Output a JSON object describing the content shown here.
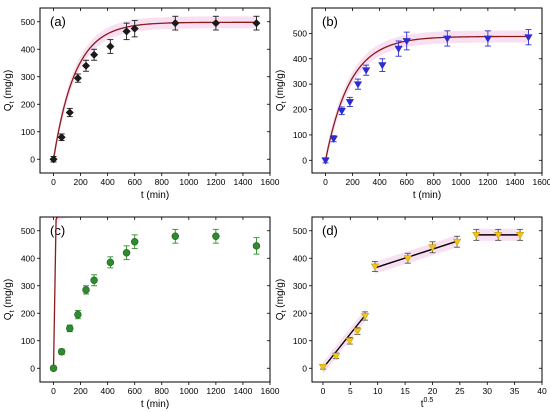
{
  "chart_data": [
    {
      "type": "scatter",
      "panel_label": "(a)",
      "xlabel": "t (min)",
      "ylabel": "Q",
      "ylabel_sub": "t",
      "ylabel_unit": " (mg/g)",
      "xlim": [
        -100,
        1600
      ],
      "ylim": [
        -50,
        550
      ],
      "xticks": [
        0,
        200,
        400,
        600,
        800,
        1000,
        1200,
        1400,
        1600
      ],
      "yticks": [
        0,
        100,
        200,
        300,
        400,
        500
      ],
      "marker": "diamond",
      "marker_color": "#1a1a1a",
      "error_color": "#1a1a1a",
      "fit_color": "#8b1a1a",
      "band_color": "#f3c7e8",
      "fit": {
        "qe": 498,
        "k": 0.0062
      },
      "series": [
        {
          "x": [
            0,
            60,
            120,
            180,
            240,
            300,
            420,
            540,
            600,
            900,
            1200,
            1500
          ],
          "y": [
            0,
            80,
            170,
            295,
            340,
            380,
            410,
            465,
            475,
            495,
            495,
            495
          ],
          "err": [
            10,
            12,
            15,
            15,
            20,
            20,
            25,
            30,
            30,
            25,
            25,
            25
          ]
        }
      ]
    },
    {
      "type": "scatter",
      "panel_label": "(b)",
      "xlabel": "t (min)",
      "ylabel": "Q",
      "ylabel_sub": "t",
      "ylabel_unit": " (mg/g)",
      "xlim": [
        -100,
        1600
      ],
      "ylim": [
        -50,
        600
      ],
      "xticks": [
        0,
        200,
        400,
        600,
        800,
        1000,
        1200,
        1400,
        1600
      ],
      "yticks": [
        0,
        100,
        200,
        300,
        400,
        500
      ],
      "marker": "triangle-down",
      "marker_color": "#2d2dcf",
      "error_color": "#2d2dcf",
      "fit_color": "#8b1a1a",
      "band_color": "#f3c7e8",
      "fit": {
        "qe": 488,
        "k": 0.0055
      },
      "series": [
        {
          "x": [
            0,
            60,
            120,
            180,
            240,
            300,
            420,
            540,
            600,
            900,
            1200,
            1500
          ],
          "y": [
            0,
            85,
            195,
            230,
            300,
            355,
            375,
            440,
            470,
            480,
            480,
            485
          ],
          "err": [
            10,
            12,
            15,
            18,
            20,
            20,
            25,
            30,
            35,
            30,
            30,
            30
          ]
        }
      ]
    },
    {
      "type": "scatter",
      "panel_label": "(c)",
      "xlabel": "t (min)",
      "ylabel": "Q",
      "ylabel_sub": "t",
      "ylabel_unit": " (mg/g)",
      "xlim": [
        -100,
        1600
      ],
      "ylim": [
        -50,
        550
      ],
      "xticks": [
        0,
        200,
        400,
        600,
        800,
        1000,
        1200,
        1400,
        1600
      ],
      "yticks": [
        0,
        100,
        200,
        300,
        400,
        500
      ],
      "marker": "circle",
      "marker_color": "#2e8b2e",
      "error_color": "#2e8b2e",
      "fit_color": "#8b1a1a",
      "band_color": "#f3c7e8",
      "fit": {
        "qe": 575,
        "k": 0.0015,
        "n": 2
      },
      "series": [
        {
          "x": [
            0,
            60,
            120,
            180,
            240,
            300,
            420,
            540,
            600,
            900,
            1200,
            1500
          ],
          "y": [
            0,
            60,
            145,
            195,
            285,
            320,
            385,
            420,
            460,
            480,
            480,
            445
          ],
          "err": [
            8,
            10,
            12,
            15,
            15,
            20,
            20,
            25,
            25,
            25,
            25,
            30
          ]
        }
      ]
    },
    {
      "type": "scatter",
      "panel_label": "(d)",
      "xlabel": "t",
      "xlabel_sup": "0.5",
      "ylabel": "Q",
      "ylabel_sub": "t",
      "ylabel_unit": " (mg/g)",
      "xlim": [
        -2,
        40
      ],
      "ylim": [
        -50,
        550
      ],
      "xticks": [
        0,
        5,
        10,
        15,
        20,
        25,
        30,
        35,
        40
      ],
      "yticks": [
        0,
        100,
        200,
        300,
        400,
        500
      ],
      "marker": "triangle-down",
      "marker_color": "#f0c419",
      "marker_fill": "#f0c419",
      "error_color": "#555555",
      "fit_color": "#000000",
      "band_color": "#f3c7e8",
      "series": [
        {
          "x": [
            0,
            2.4,
            4.9,
            6.3,
            7.7,
            9.5,
            15.5,
            20,
            24.5,
            28,
            32,
            36
          ],
          "y": [
            5,
            45,
            100,
            135,
            190,
            370,
            400,
            440,
            460,
            485,
            485,
            485
          ],
          "err": [
            8,
            10,
            12,
            12,
            15,
            18,
            18,
            20,
            20,
            20,
            20,
            20
          ]
        }
      ],
      "segments": [
        {
          "x": [
            0,
            7.8
          ],
          "y": [
            0,
            195
          ]
        },
        {
          "x": [
            9.5,
            24.5
          ],
          "y": [
            365,
            462
          ]
        },
        {
          "x": [
            28,
            36
          ],
          "y": [
            485,
            485
          ]
        }
      ]
    }
  ]
}
